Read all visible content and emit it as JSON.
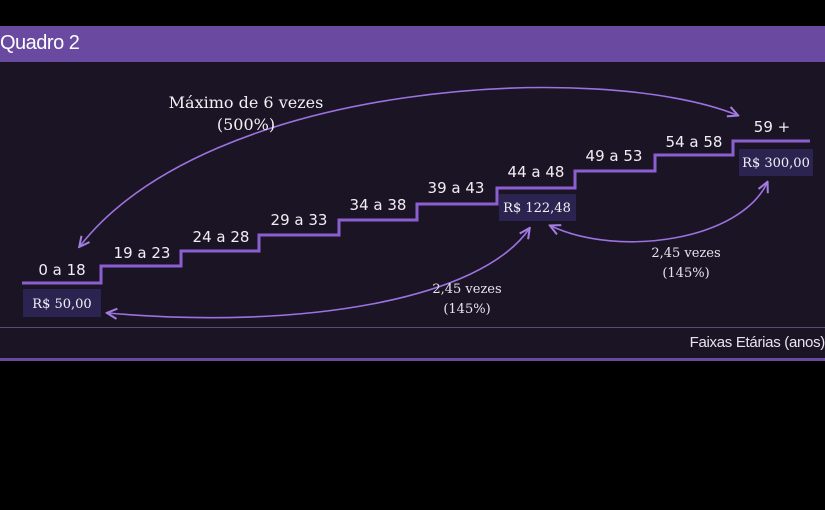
{
  "header": {
    "title": "Quadro 2"
  },
  "axis_caption": "Faixas Etárias (anos)",
  "age_bands": [
    "0 a 18",
    "19 a 23",
    "24 a 28",
    "29 a 33",
    "34 a 38",
    "39 a 43",
    "44 a 48",
    "49 a 53",
    "54 a 58",
    "59 +"
  ],
  "prices": {
    "first": "R$ 50,00",
    "seventh": "R$ 122,48",
    "last": "R$ 300,00"
  },
  "annotations": {
    "max_line1": "Máximo de 6 vezes",
    "max_line2": "(500%)",
    "lower_line1": "2,45 vezes",
    "lower_line2": "(145%)",
    "upper_line1": "2,45 vezes",
    "upper_line2": "(145%)"
  },
  "colors": {
    "header_bg": "#6a4aa1",
    "panel_bg": "#1b1424",
    "stair_line": "#8b5fd0",
    "price_box": "#2c2450"
  }
}
